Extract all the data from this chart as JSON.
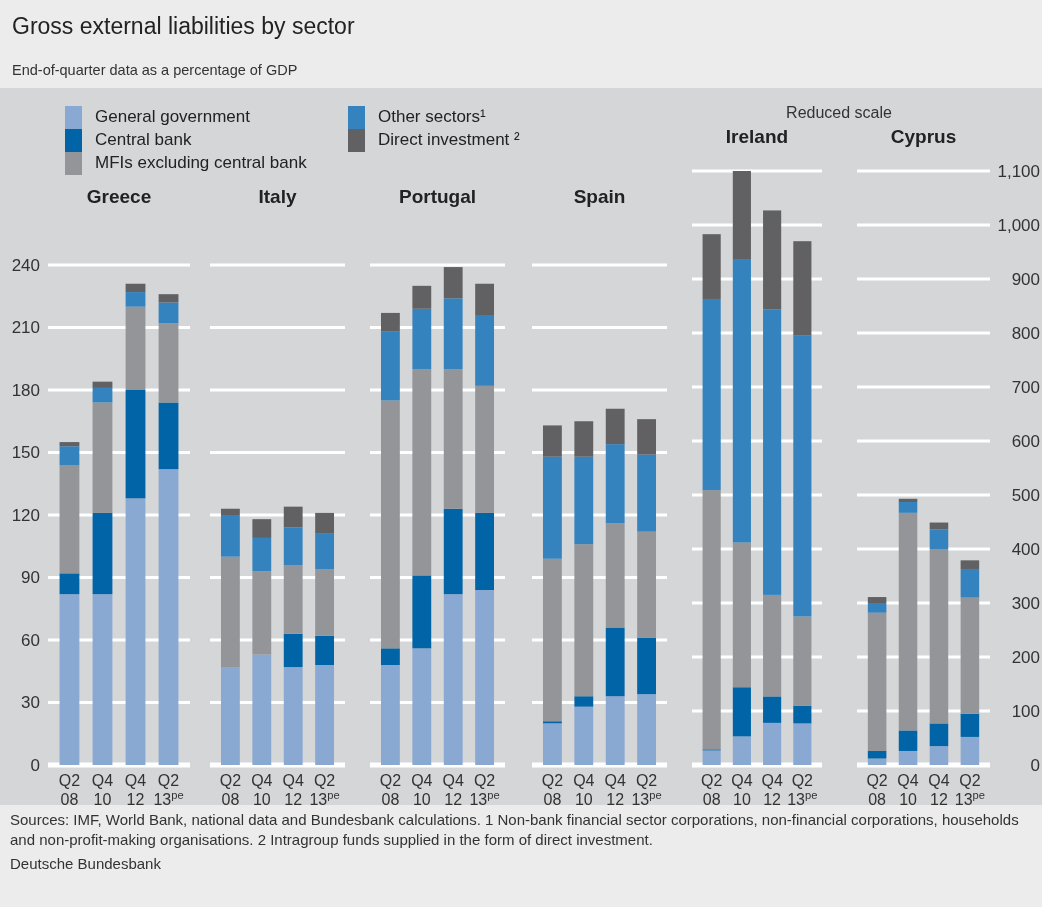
{
  "chart_data": [
    {
      "type": "other",
      "title": "Gross external liabilities by sector",
      "subtitle": "End-of-quarter data as a percentage of GDP",
      "annotations": [
        "Sources: IMF, World Bank, national data and Bundesbank calculations. 1 Non-bank financial sector corporations, non-financial corporations, households and non-profit-making organisations. 2 Intragroup funds supplied in the form of direct investment.",
        "Deutsche Bundesbank"
      ]
    },
    {
      "type": "bar",
      "stacked": true,
      "title": "Greece",
      "categories": [
        "Q2 08",
        "Q4 10",
        "Q4 12",
        "Q2 13$^{pe}$"
      ],
      "ylim": [
        0,
        240
      ],
      "yticks": [
        0,
        30,
        60,
        90,
        120,
        150,
        180,
        210,
        240
      ],
      "grid": "y",
      "tick_labels": "xy",
      "legend": "top",
      "series": [
        {
          "name": "General government",
          "color": "#89a9d2",
          "values": [
            82,
            82,
            128,
            142
          ]
        },
        {
          "name": "Central bank",
          "color": "#0064a6",
          "values": [
            10,
            39,
            52,
            32
          ]
        },
        {
          "name": "MFIs excluding central bank",
          "color": "#939598",
          "values": [
            52,
            53,
            40,
            38
          ]
        },
        {
          "name": "Other sectors¹",
          "color": "#3483bf",
          "values": [
            9,
            7,
            7,
            10
          ]
        },
        {
          "name": "Direct investment ²",
          "color": "#616163",
          "values": [
            2,
            3,
            4,
            4
          ]
        }
      ]
    },
    {
      "type": "bar",
      "stacked": true,
      "title": "Italy",
      "categories": [
        "Q2 08",
        "Q4 10",
        "Q4 12",
        "Q2 13$^{pe}$"
      ],
      "ylim": [
        0,
        240
      ],
      "yticks": [
        0,
        30,
        60,
        90,
        120,
        150,
        180,
        210,
        240
      ],
      "grid": "y",
      "tick_labels": "x",
      "series": [
        {
          "color": "#89a9d2",
          "values": [
            47,
            53,
            47,
            48
          ]
        },
        {
          "color": "#0064a6",
          "values": [
            0,
            0,
            16,
            14
          ]
        },
        {
          "color": "#939598",
          "values": [
            53,
            40,
            33,
            32
          ]
        },
        {
          "color": "#3483bf",
          "values": [
            20,
            16,
            18,
            17
          ]
        },
        {
          "color": "#616163",
          "values": [
            3,
            9,
            10,
            10
          ]
        }
      ]
    },
    {
      "type": "bar",
      "stacked": true,
      "title": "Portugal",
      "categories": [
        "Q2 08",
        "Q4 10",
        "Q4 12",
        "Q2 13$^{pe}$"
      ],
      "ylim": [
        0,
        240
      ],
      "yticks": [
        0,
        30,
        60,
        90,
        120,
        150,
        180,
        210,
        240
      ],
      "grid": "y",
      "tick_labels": "x",
      "series": [
        {
          "color": "#89a9d2",
          "values": [
            48,
            56,
            82,
            84
          ]
        },
        {
          "color": "#0064a6",
          "values": [
            8,
            35,
            41,
            37
          ]
        },
        {
          "color": "#939598",
          "values": [
            119,
            99,
            67,
            61
          ]
        },
        {
          "color": "#3483bf",
          "values": [
            33,
            29,
            34,
            34
          ]
        },
        {
          "color": "#616163",
          "values": [
            9,
            11,
            15,
            15
          ]
        }
      ]
    },
    {
      "type": "bar",
      "stacked": true,
      "title": "Spain",
      "categories": [
        "Q2 08",
        "Q4 10",
        "Q4 12",
        "Q2 13$^{pe}$"
      ],
      "ylim": [
        0,
        240
      ],
      "yticks": [
        0,
        30,
        60,
        90,
        120,
        150,
        180,
        210,
        240
      ],
      "grid": "y",
      "tick_labels": "x",
      "series": [
        {
          "color": "#89a9d2",
          "values": [
            20,
            28,
            33,
            34
          ]
        },
        {
          "color": "#0064a6",
          "values": [
            1,
            5,
            33,
            27
          ]
        },
        {
          "color": "#939598",
          "values": [
            78,
            73,
            50,
            51
          ]
        },
        {
          "color": "#3483bf",
          "values": [
            49,
            42,
            38,
            37
          ]
        },
        {
          "color": "#616163",
          "values": [
            15,
            17,
            17,
            17
          ]
        }
      ]
    },
    {
      "type": "bar",
      "stacked": true,
      "title": "Ireland",
      "annotations": [
        "Reduced scale"
      ],
      "categories": [
        "Q2 08",
        "Q4 10",
        "Q4 12",
        "Q2 13$^{pe}$"
      ],
      "y2lim": [
        0,
        1100
      ],
      "y2ticks": [
        0,
        100,
        200,
        300,
        400,
        500,
        600,
        700,
        800,
        900,
        1000,
        1100
      ],
      "grid": "y",
      "tick_labels": "x",
      "series": [
        {
          "color": "#89a9d2",
          "axis": "y2",
          "values": [
            27,
            53,
            78,
            77
          ]
        },
        {
          "color": "#0064a6",
          "axis": "y2",
          "values": [
            2,
            91,
            49,
            33
          ]
        },
        {
          "color": "#939598",
          "axis": "y2",
          "values": [
            480,
            268,
            188,
            165
          ]
        },
        {
          "color": "#3483bf",
          "axis": "y2",
          "values": [
            354,
            525,
            529,
            520
          ]
        },
        {
          "color": "#616163",
          "axis": "y2",
          "values": [
            120,
            163,
            183,
            175
          ]
        }
      ]
    },
    {
      "type": "bar",
      "stacked": true,
      "title": "Cyprus",
      "categories": [
        "Q2 08",
        "Q4 10",
        "Q4 12",
        "Q2 13$^{pe}$"
      ],
      "y2lim": [
        0,
        1100
      ],
      "y2ticks": [
        0,
        100,
        200,
        300,
        400,
        500,
        600,
        700,
        800,
        900,
        {
          "value": 1000,
          "label": "1,000"
        },
        {
          "value": 1100,
          "label": "1,100"
        }
      ],
      "grid": "y",
      "series": [
        {
          "color": "#89a9d2",
          "axis": "y2",
          "values": [
            12,
            26,
            35,
            52
          ]
        },
        {
          "color": "#0064a6",
          "axis": "y2",
          "values": [
            14,
            38,
            42,
            43
          ]
        },
        {
          "color": "#939598",
          "axis": "y2",
          "values": [
            256,
            403,
            323,
            215
          ]
        },
        {
          "color": "#3483bf",
          "axis": "y2",
          "values": [
            18,
            20,
            36,
            53
          ]
        },
        {
          "color": "#616163",
          "axis": "y2",
          "values": [
            11,
            6,
            13,
            16
          ]
        }
      ]
    }
  ]
}
